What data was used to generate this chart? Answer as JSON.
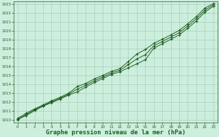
{
  "background_color": "#cceedd",
  "grid_color": "#aaccbb",
  "line_color": "#1e5c1e",
  "xlabel": "Graphe pression niveau de la mer (hPa)",
  "xlabel_fontsize": 6.5,
  "xlim": [
    0,
    23
  ],
  "ylim": [
    1010,
    1023
  ],
  "xticks": [
    0,
    1,
    2,
    3,
    4,
    5,
    6,
    7,
    8,
    9,
    10,
    11,
    12,
    13,
    14,
    15,
    16,
    17,
    18,
    19,
    20,
    21,
    22,
    23
  ],
  "yticks": [
    1010,
    1011,
    1012,
    1013,
    1014,
    1015,
    1016,
    1017,
    1018,
    1019,
    1020,
    1021,
    1022,
    1023
  ],
  "series": [
    [
      1010.05,
      1010.5,
      1011.05,
      1011.55,
      1011.95,
      1012.35,
      1012.8,
      1013.15,
      1013.7,
      1014.2,
      1014.65,
      1015.1,
      1015.4,
      1015.85,
      1016.3,
      1016.75,
      1018.05,
      1018.55,
      1019.05,
      1019.55,
      1020.3,
      1021.1,
      1022.1,
      1022.75
    ],
    [
      1010.2,
      1010.75,
      1011.25,
      1011.7,
      1012.15,
      1012.55,
      1013.0,
      1013.75,
      1014.1,
      1014.6,
      1015.0,
      1015.45,
      1015.75,
      1016.55,
      1017.4,
      1017.9,
      1018.6,
      1019.05,
      1019.55,
      1020.05,
      1020.8,
      1021.6,
      1022.55,
      1023.05
    ],
    [
      1010.1,
      1010.6,
      1011.15,
      1011.6,
      1012.05,
      1012.45,
      1012.9,
      1013.45,
      1013.9,
      1014.4,
      1014.82,
      1015.27,
      1015.57,
      1016.2,
      1016.85,
      1017.32,
      1018.32,
      1018.8,
      1019.3,
      1019.8,
      1020.55,
      1021.35,
      1022.32,
      1022.9
    ]
  ]
}
